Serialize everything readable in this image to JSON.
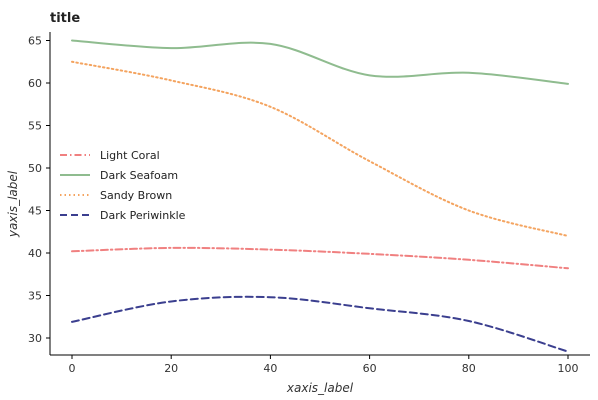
{
  "chart_data": {
    "type": "line",
    "title": "title",
    "xlabel": "xaxis_label",
    "ylabel": "yaxis_label",
    "xlim": [
      0,
      100
    ],
    "ylim": [
      28,
      66
    ],
    "x_ticks": [
      0,
      20,
      40,
      60,
      80,
      100
    ],
    "y_ticks": [
      30,
      35,
      40,
      45,
      50,
      55,
      60,
      65
    ],
    "grid": false,
    "legend_position": "left-center",
    "x": [
      0,
      20,
      40,
      60,
      80,
      100
    ],
    "series": [
      {
        "name": "Light Coral",
        "color": "#f08080",
        "dash": "dashdot",
        "values": [
          40.2,
          40.6,
          40.4,
          39.9,
          39.2,
          38.2
        ]
      },
      {
        "name": "Dark Seafoam",
        "color": "#8fbc8f",
        "dash": "solid",
        "values": [
          65.0,
          64.1,
          64.6,
          60.9,
          61.2,
          59.9
        ]
      },
      {
        "name": "Sandy Brown",
        "color": "#f4a460",
        "dash": "dotted",
        "values": [
          62.5,
          60.3,
          57.2,
          50.8,
          45.0,
          42.0
        ]
      },
      {
        "name": "Dark Periwinkle",
        "color": "#3b3f8f",
        "dash": "dashed",
        "values": [
          31.9,
          34.3,
          34.8,
          33.5,
          32.0,
          28.4
        ]
      }
    ]
  }
}
